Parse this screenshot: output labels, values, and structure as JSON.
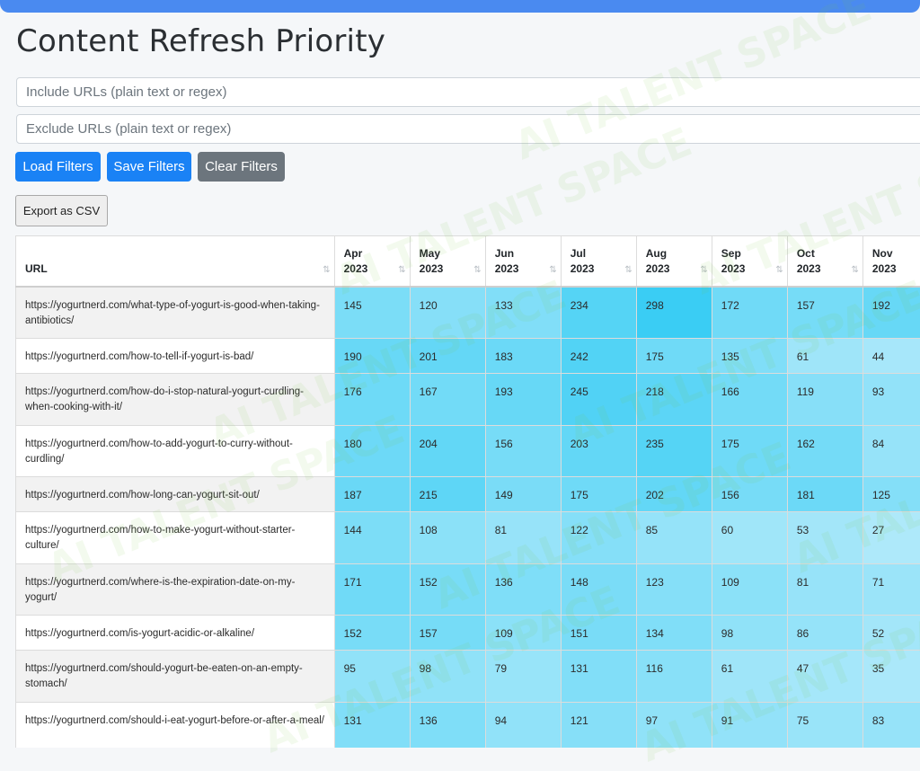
{
  "page": {
    "title": "Content Refresh Priority"
  },
  "filters": {
    "include_placeholder": "Include URLs (plain text or regex)",
    "exclude_placeholder": "Exclude URLs (plain text or regex)",
    "load_label": "Load Filters",
    "save_label": "Save Filters",
    "clear_label": "Clear Filters"
  },
  "export": {
    "label": "Export as CSV"
  },
  "watermark": {
    "text": "AI TALENT SPACE"
  },
  "table": {
    "url_header": "URL",
    "sort_icon": "⇅",
    "months": [
      {
        "m": "Apr",
        "y": "2023"
      },
      {
        "m": "May",
        "y": "2023"
      },
      {
        "m": "Jun",
        "y": "2023"
      },
      {
        "m": "Jul",
        "y": "2023"
      },
      {
        "m": "Aug",
        "y": "2023"
      },
      {
        "m": "Sep",
        "y": "2023"
      },
      {
        "m": "Oct",
        "y": "2023"
      },
      {
        "m": "Nov",
        "y": "2023"
      }
    ],
    "rows": [
      {
        "url": "https://yogurtnerd.com/what-type-of-yogurt-is-good-when-taking-antibiotics/",
        "values": [
          145,
          120,
          133,
          234,
          298,
          172,
          157,
          192
        ]
      },
      {
        "url": "https://yogurtnerd.com/how-to-tell-if-yogurt-is-bad/",
        "values": [
          190,
          201,
          183,
          242,
          175,
          135,
          61,
          44
        ]
      },
      {
        "url": "https://yogurtnerd.com/how-do-i-stop-natural-yogurt-curdling-when-cooking-with-it/",
        "values": [
          176,
          167,
          193,
          245,
          218,
          166,
          119,
          93
        ]
      },
      {
        "url": "https://yogurtnerd.com/how-to-add-yogurt-to-curry-without-curdling/",
        "values": [
          180,
          204,
          156,
          203,
          235,
          175,
          162,
          84
        ]
      },
      {
        "url": "https://yogurtnerd.com/how-long-can-yogurt-sit-out/",
        "values": [
          187,
          215,
          149,
          175,
          202,
          156,
          181,
          125
        ]
      },
      {
        "url": "https://yogurtnerd.com/how-to-make-yogurt-without-starter-culture/",
        "values": [
          144,
          108,
          81,
          122,
          85,
          60,
          53,
          27
        ]
      },
      {
        "url": "https://yogurtnerd.com/where-is-the-expiration-date-on-my-yogurt/",
        "values": [
          171,
          152,
          136,
          148,
          123,
          109,
          81,
          71
        ]
      },
      {
        "url": "https://yogurtnerd.com/is-yogurt-acidic-or-alkaline/",
        "values": [
          152,
          157,
          109,
          151,
          134,
          98,
          86,
          52
        ]
      },
      {
        "url": "https://yogurtnerd.com/should-yogurt-be-eaten-on-an-empty-stomach/",
        "values": [
          95,
          98,
          79,
          131,
          116,
          61,
          47,
          35
        ]
      },
      {
        "url": "https://yogurtnerd.com/should-i-eat-yogurt-before-or-after-a-meal/",
        "values": [
          131,
          136,
          94,
          121,
          97,
          91,
          75,
          83
        ]
      }
    ]
  },
  "colors": {
    "accent_bar": "#4a8af0",
    "primary_button": "#1a82f5",
    "secondary_button": "#6c757d",
    "heat_low": "#aee9fa",
    "heat_high": "#3ecdf4"
  }
}
